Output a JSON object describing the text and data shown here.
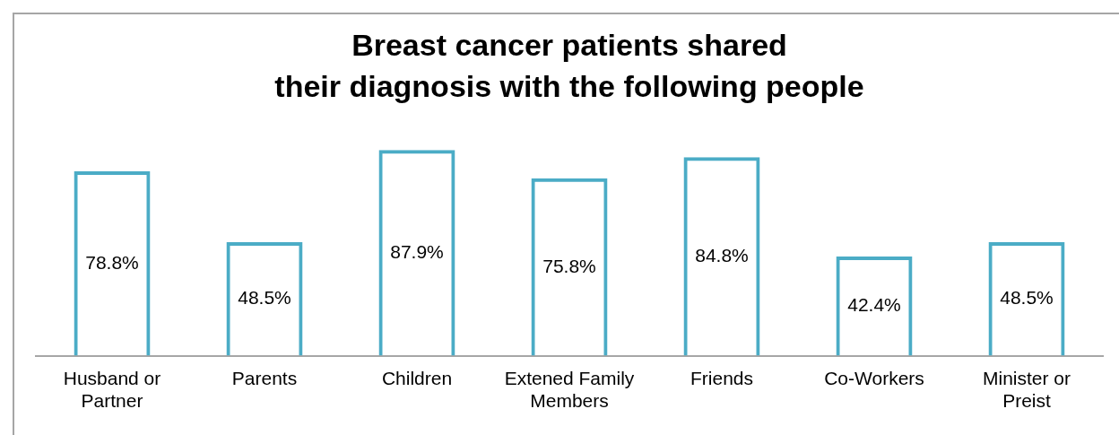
{
  "chart_data": {
    "type": "bar",
    "title": "Breast cancer patients shared\ntheir diagnosis with the following people",
    "categories": [
      "Husband or Partner",
      "Parents",
      "Children",
      "Extened Family Members",
      "Friends",
      "Co-Workers",
      "Minister or Preist"
    ],
    "values": [
      78.8,
      48.5,
      87.9,
      75.8,
      84.8,
      42.4,
      48.5
    ],
    "value_labels": [
      "78.8%",
      "48.5%",
      "87.9%",
      "75.8%",
      "84.8%",
      "42.4%",
      "48.5%"
    ],
    "color": "#4bacc6",
    "tick_labels": "x",
    "grid": false,
    "legend": false
  }
}
